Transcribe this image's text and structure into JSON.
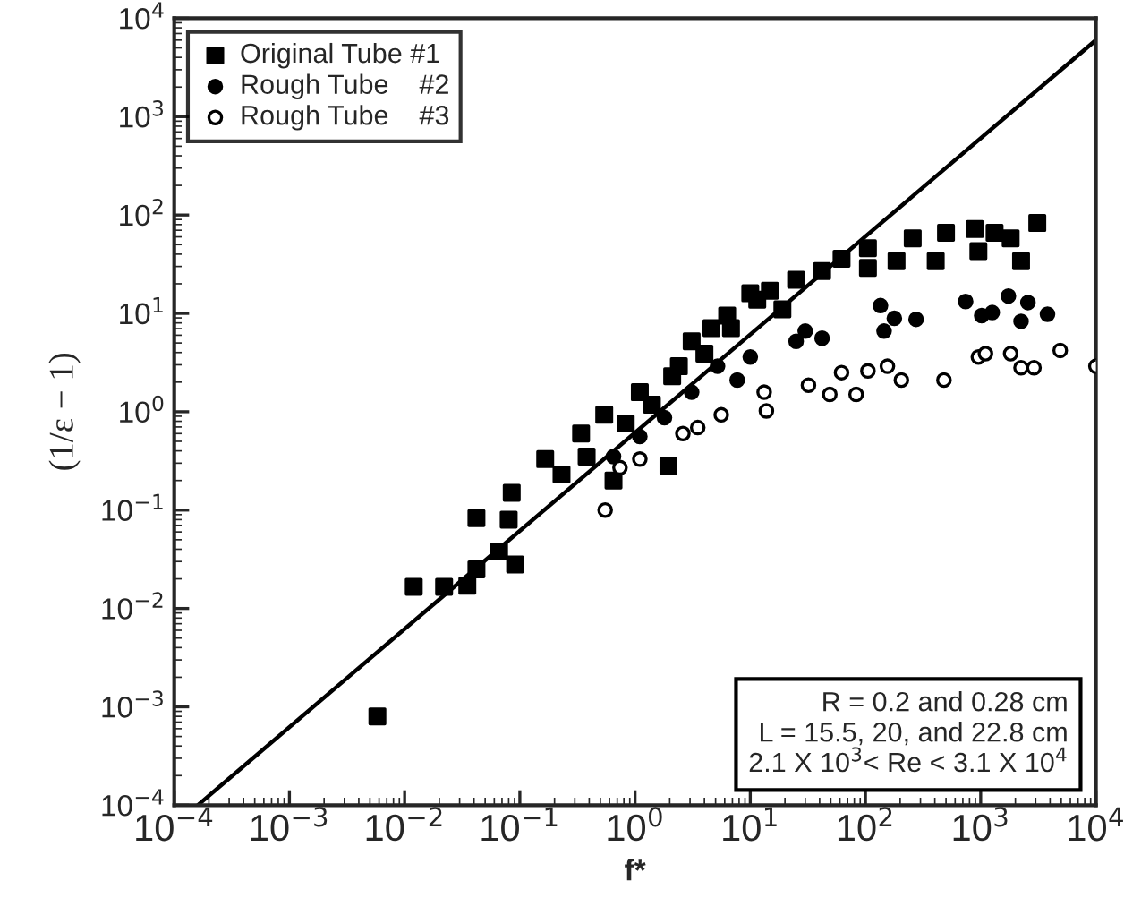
{
  "chart_data": {
    "type": "scatter",
    "xlabel": "f*",
    "ylabel": "(1/ε − 1)",
    "log": "xy",
    "xlim": [
      0.0001,
      10000
    ],
    "ylim": [
      0.0001,
      10000
    ],
    "xticks": [
      {
        "value": 0.0001,
        "label": "10$^{−4}$"
      },
      {
        "value": 0.001,
        "label": "10$^{−3}$"
      },
      {
        "value": 0.01,
        "label": "10$^{−2}$"
      },
      {
        "value": 0.1,
        "label": "10$^{−1}$"
      },
      {
        "value": 1,
        "label": "10$^{0}$"
      },
      {
        "value": 10,
        "label": "10$^{1}$"
      },
      {
        "value": 100,
        "label": "10$^{2}$"
      },
      {
        "value": 1000,
        "label": "10$^{3}$"
      },
      {
        "value": 10000,
        "label": "10$^{4}$"
      }
    ],
    "yticks": [
      {
        "value": 0.0001,
        "label": "10$^{−4}$"
      },
      {
        "value": 0.001,
        "label": "10$^{−3}$"
      },
      {
        "value": 0.01,
        "label": "10$^{−2}$"
      },
      {
        "value": 0.1,
        "label": "10$^{−1}$"
      },
      {
        "value": 1,
        "label": "10$^{0}$"
      },
      {
        "value": 10,
        "label": "10$^{1}$"
      },
      {
        "value": 100,
        "label": "10$^{2}$"
      },
      {
        "value": 1000,
        "label": "10$^{3}$"
      },
      {
        "value": 10000,
        "label": "10$^{4}$"
      }
    ],
    "grid": false,
    "legend": "top left",
    "annotations": [
      "R = 0.2 and 0.28 cm",
      "L = 15.5, 20, and 22.8 cm",
      "2.1 X 10$^{3}$< Re < 3.1 X 10$^{4}$"
    ],
    "series": [
      {
        "name": "Original Tube #1",
        "color": "#000000",
        "marker": "square",
        "x": [
          0.0058,
          0.012,
          0.022,
          0.035,
          0.042,
          0.066,
          0.091,
          0.042,
          0.085,
          0.08,
          0.166,
          0.23,
          0.34,
          0.54,
          0.65,
          1.1,
          1.95,
          2.1,
          3.1,
          4.6,
          6.3,
          10,
          14.8,
          25,
          42,
          62,
          105,
          105,
          186,
          257,
          407,
          500,
          890,
          955,
          1320,
          1820,
          2240,
          3100,
          0.38,
          0.83,
          1.4,
          2.4,
          4,
          6.8,
          11.5,
          19
        ],
        "values": [
          0.0008,
          0.0166,
          0.0166,
          0.017,
          0.025,
          0.038,
          0.028,
          0.083,
          0.15,
          0.08,
          0.33,
          0.23,
          0.6,
          0.93,
          0.2,
          1.58,
          0.28,
          2.3,
          5.2,
          7.1,
          9.5,
          16,
          17,
          22,
          27,
          36,
          46,
          29,
          34,
          58,
          34,
          66,
          72,
          43,
          66,
          58,
          34,
          83,
          0.35,
          0.76,
          1.18,
          2.9,
          3.9,
          7.1,
          13.8,
          11
        ]
      },
      {
        "name": "Rough Tube    #2",
        "color": "#000000",
        "marker": "circle",
        "x": [
          135,
          145,
          178,
          275,
          740,
          1020,
          1260,
          1740,
          2240,
          2570,
          3800,
          42,
          25,
          30,
          10,
          7.7,
          5.2,
          3.1,
          1.8,
          1.1,
          0.65
        ],
        "values": [
          12,
          6.6,
          8.9,
          8.7,
          13.2,
          9.5,
          10.2,
          15,
          8.3,
          12.9,
          9.8,
          5.6,
          5.2,
          6.6,
          3.6,
          2.1,
          2.9,
          1.58,
          0.87,
          0.56,
          0.35
        ]
      },
      {
        "name": "Rough Tube    #3",
        "color": "#ffffff",
        "marker": "circle",
        "x": [
          0.55,
          0.74,
          1.1,
          2.6,
          3.5,
          5.6,
          13.2,
          13.8,
          32,
          49,
          62,
          83,
          105,
          155,
          205,
          480,
          955,
          1100,
          1820,
          2240,
          2900,
          4900,
          10000
        ],
        "values": [
          0.1,
          0.27,
          0.33,
          0.6,
          0.69,
          0.93,
          1.58,
          1.02,
          1.86,
          1.5,
          2.5,
          1.5,
          2.6,
          2.9,
          2.1,
          2.1,
          3.6,
          3.9,
          3.9,
          2.8,
          2.8,
          4.2,
          2.9
        ]
      },
      {
        "type": "line",
        "color": "#000000",
        "marker": "none",
        "line_style": "solid",
        "x": [
          0.00016,
          10000
        ],
        "values": [
          0.0001,
          6000
        ]
      }
    ]
  }
}
